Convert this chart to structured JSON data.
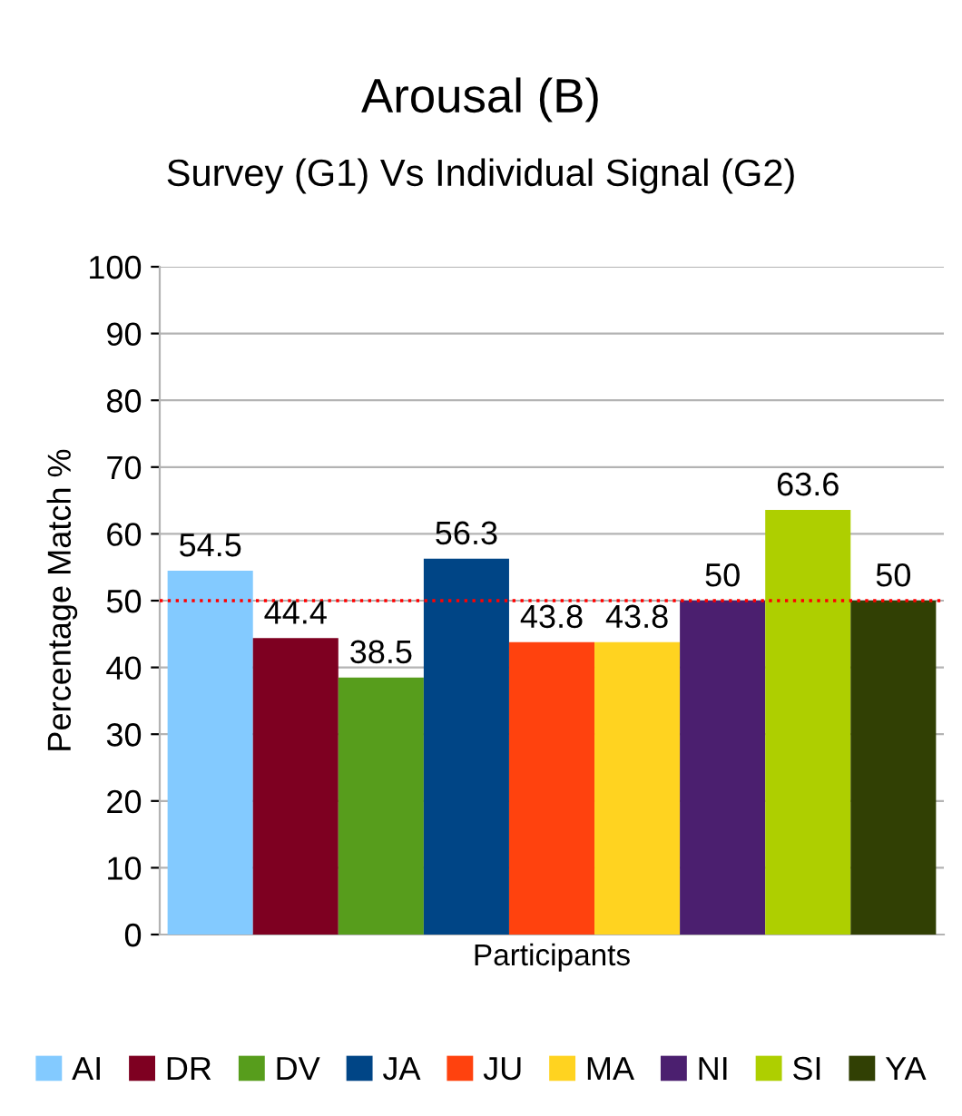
{
  "chart_data": {
    "type": "bar",
    "title": "Arousal (B)",
    "subtitle": "Survey (G1) Vs Individual Signal (G2)",
    "ylabel": "Percentage Match %",
    "categories": [
      "Participants"
    ],
    "series": [
      {
        "name": "AI",
        "color": "#83caff",
        "values": [
          54.5
        ]
      },
      {
        "name": "DR",
        "color": "#7e0021",
        "values": [
          44.4
        ]
      },
      {
        "name": "DV",
        "color": "#579d1c",
        "values": [
          38.5
        ]
      },
      {
        "name": "JA",
        "color": "#004586",
        "values": [
          56.3
        ]
      },
      {
        "name": "JU",
        "color": "#ff420e",
        "values": [
          43.8
        ]
      },
      {
        "name": "MA",
        "color": "#ffd320",
        "values": [
          43.8
        ]
      },
      {
        "name": "NI",
        "color": "#4b1f6f",
        "values": [
          50
        ]
      },
      {
        "name": "SI",
        "color": "#aecf00",
        "values": [
          63.6
        ]
      },
      {
        "name": "YA",
        "color": "#314004",
        "values": [
          50
        ]
      }
    ],
    "ylim": [
      0,
      100
    ],
    "yticks": [
      0,
      10,
      20,
      30,
      40,
      50,
      60,
      70,
      80,
      90,
      100
    ],
    "grid": "y",
    "legend": "bottom",
    "data_labels": true,
    "ref_lines": [
      {
        "axis": "y",
        "value": 50,
        "color": "#ff0000",
        "line_style": "dotted"
      }
    ]
  }
}
